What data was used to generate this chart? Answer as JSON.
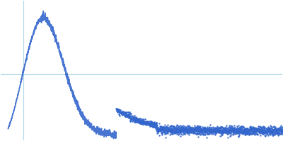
{
  "background_color": "#ffffff",
  "line_color": "#3366cc",
  "grid_color": "#add8e6",
  "fig_width": 4.0,
  "fig_height": 2.0,
  "dpi": 100,
  "point_size": 1.2,
  "vline_x": 0.035,
  "hline_y": 0.52,
  "ylim_min": -0.05,
  "ylim_max": 1.15,
  "xlim_min": -0.01,
  "xlim_max": 0.55
}
